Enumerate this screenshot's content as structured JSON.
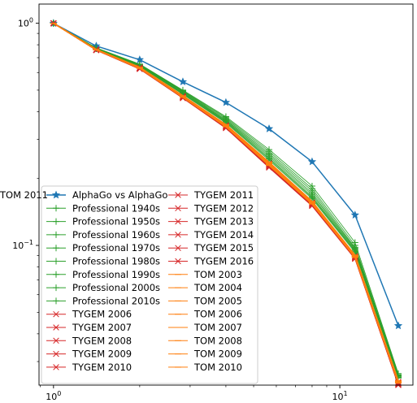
{
  "chart_data": {
    "type": "line",
    "title": "",
    "xlabel": "",
    "ylabel": "",
    "xscale": "log",
    "yscale": "log",
    "xlim": [
      0.89,
      18.0
    ],
    "ylim": [
      0.0235,
      1.22
    ],
    "grid": false,
    "legend_position": "lower-left",
    "x_tick_labels": [
      {
        "value": 1,
        "base": "10",
        "exp": "0"
      },
      {
        "value": 10,
        "base": "10",
        "exp": "1"
      }
    ],
    "y_tick_labels": [
      {
        "value": 1,
        "base": "10",
        "exp": "0"
      },
      {
        "value": 0.1,
        "base": "10",
        "exp": "−1"
      }
    ],
    "x": [
      1,
      1.41,
      2,
      2.83,
      4,
      5.66,
      8,
      11.3,
      16
    ],
    "series": [
      {
        "name": "AlphaGo vs AlphaGo",
        "group": "alphago",
        "color": "#1f77b4",
        "marker": "star",
        "values": [
          1.0,
          0.79,
          0.685,
          0.545,
          0.44,
          0.335,
          0.238,
          0.137,
          0.0435
        ]
      },
      {
        "name": "Professional 1940s",
        "group": "pro",
        "color": "#2ca02c",
        "marker": "plus",
        "values": [
          1.0,
          0.775,
          0.655,
          0.5,
          0.38,
          0.27,
          0.185,
          0.103,
          0.0265
        ]
      },
      {
        "name": "Professional 1950s",
        "group": "pro",
        "color": "#2ca02c",
        "marker": "plus",
        "values": [
          1.0,
          0.773,
          0.652,
          0.497,
          0.376,
          0.265,
          0.18,
          0.1,
          0.0262
        ]
      },
      {
        "name": "Professional 1960s",
        "group": "pro",
        "color": "#2ca02c",
        "marker": "plus",
        "values": [
          1.0,
          0.772,
          0.65,
          0.494,
          0.372,
          0.26,
          0.176,
          0.098,
          0.026
        ]
      },
      {
        "name": "Professional 1970s",
        "group": "pro",
        "color": "#2ca02c",
        "marker": "plus",
        "values": [
          1.0,
          0.771,
          0.648,
          0.491,
          0.368,
          0.256,
          0.172,
          0.097,
          0.0258
        ]
      },
      {
        "name": "Professional 1980s",
        "group": "pro",
        "color": "#2ca02c",
        "marker": "plus",
        "values": [
          1.0,
          0.77,
          0.646,
          0.488,
          0.365,
          0.252,
          0.169,
          0.096,
          0.0256
        ]
      },
      {
        "name": "Professional 1990s",
        "group": "pro",
        "color": "#2ca02c",
        "marker": "plus",
        "values": [
          1.0,
          0.769,
          0.644,
          0.485,
          0.362,
          0.248,
          0.166,
          0.095,
          0.0255
        ]
      },
      {
        "name": "Professional 2000s",
        "group": "pro",
        "color": "#2ca02c",
        "marker": "plus",
        "values": [
          1.0,
          0.768,
          0.642,
          0.482,
          0.359,
          0.245,
          0.164,
          0.094,
          0.0254
        ]
      },
      {
        "name": "Professional 2010s",
        "group": "pro",
        "color": "#2ca02c",
        "marker": "plus",
        "values": [
          1.0,
          0.767,
          0.64,
          0.479,
          0.356,
          0.242,
          0.162,
          0.093,
          0.0253
        ]
      },
      {
        "name": "TYGEM 2006",
        "group": "tygem",
        "color": "#d62728",
        "marker": "x",
        "values": [
          1.0,
          0.762,
          0.632,
          0.47,
          0.347,
          0.234,
          0.156,
          0.0895,
          0.0243
        ]
      },
      {
        "name": "TYGEM 2007",
        "group": "tygem",
        "color": "#d62728",
        "marker": "x",
        "values": [
          1.0,
          0.761,
          0.631,
          0.469,
          0.346,
          0.233,
          0.155,
          0.0892,
          0.0242
        ]
      },
      {
        "name": "TYGEM 2008",
        "group": "tygem",
        "color": "#d62728",
        "marker": "x",
        "values": [
          1.0,
          0.76,
          0.63,
          0.468,
          0.345,
          0.232,
          0.1545,
          0.089,
          0.0241
        ]
      },
      {
        "name": "TYGEM 2009",
        "group": "tygem",
        "color": "#d62728",
        "marker": "x",
        "values": [
          1.0,
          0.76,
          0.629,
          0.467,
          0.344,
          0.231,
          0.154,
          0.0888,
          0.024
        ]
      },
      {
        "name": "TYGEM 2010",
        "group": "tygem",
        "color": "#d62728",
        "marker": "x",
        "values": [
          1.0,
          0.759,
          0.628,
          0.466,
          0.343,
          0.23,
          0.1535,
          0.0885,
          0.0239
        ]
      },
      {
        "name": "TYGEM 2011",
        "group": "tygem",
        "color": "#d62728",
        "marker": "x",
        "values": [
          1.0,
          0.759,
          0.627,
          0.465,
          0.342,
          0.229,
          0.153,
          0.0882,
          0.0238
        ]
      },
      {
        "name": "TYGEM 2012",
        "group": "tygem",
        "color": "#d62728",
        "marker": "x",
        "values": [
          1.0,
          0.758,
          0.626,
          0.464,
          0.341,
          0.228,
          0.1525,
          0.088,
          0.0237
        ]
      },
      {
        "name": "TYGEM 2013",
        "group": "tygem",
        "color": "#d62728",
        "marker": "x",
        "values": [
          1.0,
          0.758,
          0.625,
          0.463,
          0.34,
          0.227,
          0.152,
          0.0878,
          0.0237
        ]
      },
      {
        "name": "TYGEM 2014",
        "group": "tygem",
        "color": "#d62728",
        "marker": "x",
        "values": [
          1.0,
          0.757,
          0.624,
          0.462,
          0.339,
          0.226,
          0.1515,
          0.0875,
          0.0236
        ]
      },
      {
        "name": "TYGEM 2015",
        "group": "tygem",
        "color": "#d62728",
        "marker": "x",
        "values": [
          1.0,
          0.757,
          0.623,
          0.461,
          0.338,
          0.225,
          0.151,
          0.0872,
          0.0236
        ]
      },
      {
        "name": "TYGEM 2016",
        "group": "tygem",
        "color": "#d62728",
        "marker": "x",
        "values": [
          1.0,
          0.756,
          0.622,
          0.46,
          0.337,
          0.224,
          0.1505,
          0.087,
          0.0235
        ]
      },
      {
        "name": "TOM 2003",
        "group": "tom",
        "color": "#ff7f0e",
        "marker": "tick",
        "values": [
          1.0,
          0.763,
          0.634,
          0.472,
          0.35,
          0.237,
          0.158,
          0.0905,
          0.0246
        ]
      },
      {
        "name": "TOM 2004",
        "group": "tom",
        "color": "#ff7f0e",
        "marker": "tick",
        "values": [
          1.0,
          0.762,
          0.633,
          0.471,
          0.349,
          0.236,
          0.157,
          0.09,
          0.0245
        ]
      },
      {
        "name": "TOM 2005",
        "group": "tom",
        "color": "#ff7f0e",
        "marker": "tick",
        "values": [
          1.0,
          0.762,
          0.632,
          0.47,
          0.348,
          0.235,
          0.1565,
          0.0898,
          0.0244
        ]
      },
      {
        "name": "TOM 2006",
        "group": "tom",
        "color": "#ff7f0e",
        "marker": "tick",
        "values": [
          1.0,
          0.761,
          0.631,
          0.469,
          0.347,
          0.234,
          0.156,
          0.0895,
          0.0244
        ]
      },
      {
        "name": "TOM 2007",
        "group": "tom",
        "color": "#ff7f0e",
        "marker": "tick",
        "values": [
          1.0,
          0.761,
          0.63,
          0.468,
          0.346,
          0.233,
          0.1555,
          0.0892,
          0.0243
        ]
      },
      {
        "name": "TOM 2008",
        "group": "tom",
        "color": "#ff7f0e",
        "marker": "tick",
        "values": [
          1.0,
          0.76,
          0.629,
          0.467,
          0.345,
          0.232,
          0.155,
          0.089,
          0.0242
        ]
      },
      {
        "name": "TOM 2009",
        "group": "tom",
        "color": "#ff7f0e",
        "marker": "tick",
        "values": [
          1.0,
          0.76,
          0.628,
          0.466,
          0.344,
          0.231,
          0.1545,
          0.0888,
          0.0242
        ]
      },
      {
        "name": "TOM 2010",
        "group": "tom",
        "color": "#ff7f0e",
        "marker": "tick",
        "values": [
          1.0,
          0.759,
          0.627,
          0.465,
          0.343,
          0.23,
          0.154,
          0.0885,
          0.0241
        ]
      },
      {
        "name": "TOM 2011",
        "group": "tom",
        "color": "#ff7f0e",
        "marker": "tick",
        "values": [
          1.0,
          0.759,
          0.626,
          0.464,
          0.342,
          0.229,
          0.1535,
          0.0882,
          0.024
        ]
      }
    ]
  }
}
